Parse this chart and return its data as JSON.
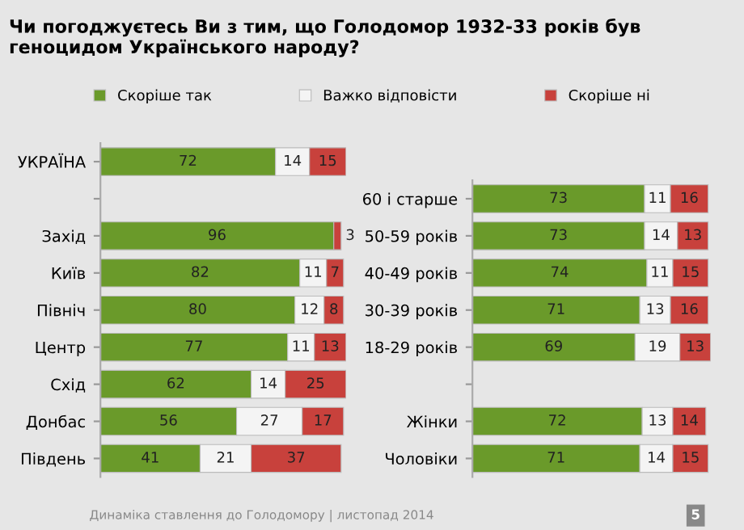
{
  "chart_data": [
    {
      "type": "bar",
      "title": "Чи погоджуєтесь Ви з тим, що Голодомор 1932-33 років був геноцидом Українського народу?",
      "orientation": "horizontal",
      "stacked": true,
      "data_labels": true,
      "legend": "top",
      "tick_labels": "y",
      "xlim": [
        0,
        101
      ],
      "categories": [
        "УКРАЇНА",
        null,
        "Захід",
        "Київ",
        "Північ",
        "Центр",
        "Схід",
        "Донбас",
        "Південь"
      ],
      "series": [
        {
          "name": "Скоріше так",
          "color": "#6a9a2a",
          "values": [
            72,
            null,
            96,
            82,
            80,
            77,
            62,
            56,
            41
          ]
        },
        {
          "name": "Важко відповісти",
          "color": "#f4f4f4",
          "values": [
            14,
            null,
            null,
            11,
            12,
            11,
            14,
            27,
            21
          ]
        },
        {
          "name": "Скоріше ні",
          "color": "#c8413c",
          "values": [
            15,
            null,
            3,
            7,
            8,
            13,
            25,
            17,
            37
          ]
        }
      ],
      "annotations": [
        "Динаміка ставлення до Голодомору | листопад 2014",
        "5"
      ]
    },
    {
      "type": "bar",
      "orientation": "horizontal",
      "stacked": true,
      "data_labels": true,
      "tick_labels": "y",
      "xlim": [
        0,
        101
      ],
      "categories": [
        "60 і старше",
        "50-59 років",
        "40-49 років",
        "30-39 років",
        "18-29 років",
        null,
        "Жінки",
        "Чоловіки"
      ],
      "series": [
        {
          "color": "#6a9a2a",
          "values": [
            73,
            73,
            74,
            71,
            69,
            null,
            72,
            71
          ]
        },
        {
          "color": "#f4f4f4",
          "values": [
            11,
            14,
            11,
            13,
            19,
            null,
            13,
            14
          ]
        },
        {
          "color": "#c8413c",
          "values": [
            16,
            13,
            15,
            16,
            13,
            null,
            14,
            15
          ]
        }
      ]
    }
  ]
}
